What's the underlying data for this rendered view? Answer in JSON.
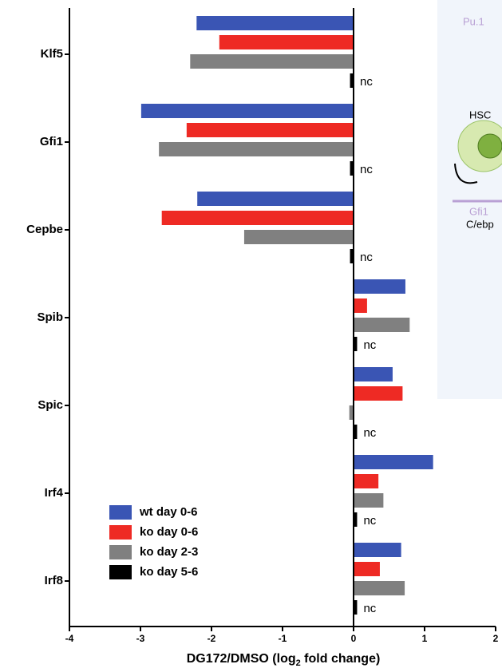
{
  "chart_data": {
    "type": "barh",
    "xlabel": "DG172/DMSO (log",
    "xlabel_sub": "2",
    "xlabel_end": " fold change)",
    "categories": [
      "Klf5",
      "Gfi1",
      "Cepbe",
      "Spib",
      "Spic",
      "Irf4",
      "Irf8"
    ],
    "series": [
      {
        "name": "wt day 0-6",
        "color": "#3a55b4",
        "values": [
          -2.21,
          -2.99,
          -2.2,
          0.73,
          0.55,
          1.12,
          0.67
        ]
      },
      {
        "name": "ko day 0-6",
        "color": "#ee2a24",
        "values": [
          -1.89,
          -2.35,
          -2.7,
          0.19,
          0.69,
          0.35,
          0.37
        ]
      },
      {
        "name": "ko day 2-3",
        "color": "#808080",
        "values": [
          -2.3,
          -2.74,
          -1.54,
          0.79,
          -0.06,
          0.42,
          0.72
        ]
      },
      {
        "name": "ko day 5-6",
        "color": "#000000",
        "values": [
          -0.05,
          -0.05,
          -0.05,
          0.05,
          0.05,
          0.05,
          0.05
        ],
        "value_labels": [
          "nc",
          "nc",
          "nc",
          "nc",
          "nc",
          "nc",
          "nc"
        ]
      }
    ],
    "xlim": [
      -4,
      2
    ],
    "xticks": [
      -4,
      -3,
      -2,
      -1,
      0,
      1,
      2
    ],
    "legend": "lower left",
    "inset_labels": [
      "Pu.1",
      "HSC",
      "Gfi1",
      "C/ebp"
    ]
  }
}
